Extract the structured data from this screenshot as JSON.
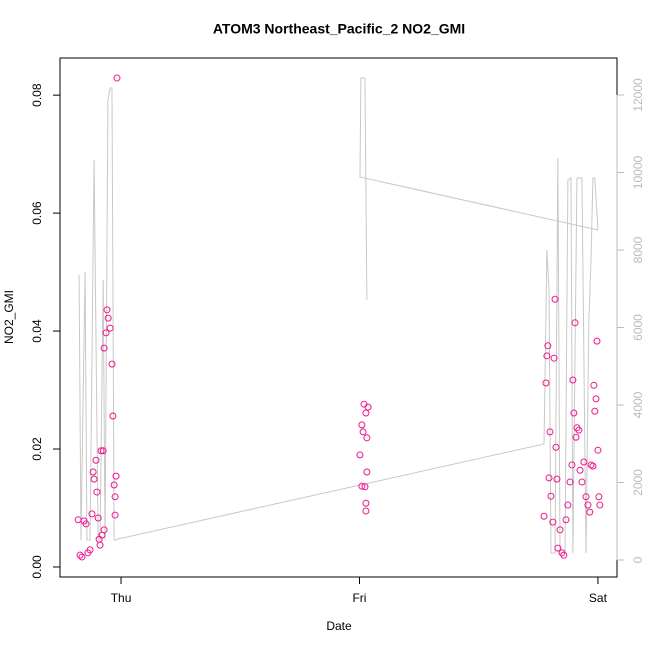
{
  "chart_data": {
    "type": "scatter",
    "title": "ATOM3 Northeast_Pacific_2 NO2_GMI",
    "x_label": "Date",
    "y_label": "NO2_GMI",
    "xlim": [
      -0.256,
      2.08
    ],
    "xticks": [
      {
        "value": 0,
        "label": "Thu"
      },
      {
        "value": 1,
        "label": "Fri"
      },
      {
        "value": 2,
        "label": "Sat"
      }
    ],
    "ylim": [
      -0.0017,
      0.0863
    ],
    "yticks": [
      {
        "value": 0,
        "label": "0.00"
      },
      {
        "value": 0.02,
        "label": "0.02"
      },
      {
        "value": 0.04,
        "label": "0.04"
      },
      {
        "value": 0.06,
        "label": "0.06"
      },
      {
        "value": 0.08,
        "label": "0.08"
      }
    ],
    "y2lim": [
      -439,
      12955
    ],
    "y2ticks": [
      0,
      2000,
      4000,
      6000,
      8000,
      10000,
      12000
    ],
    "series": [
      {
        "type": "scatter",
        "color": "#f0168c",
        "x": [
          -0.18,
          -0.172,
          -0.164,
          -0.155,
          -0.147,
          -0.139,
          -0.13,
          -0.122,
          -0.117,
          -0.113,
          -0.105,
          -0.101,
          -0.096,
          -0.092,
          -0.088,
          -0.084,
          -0.08,
          -0.075,
          -0.071,
          -0.063,
          -0.059,
          -0.054,
          -0.046,
          -0.038,
          -0.034,
          -0.029,
          -0.025,
          -0.021,
          -0.017,
          -0.025,
          -0.071,
          1.002,
          1.01,
          1.015,
          1.019,
          1.023,
          1.027,
          1.031,
          1.031,
          1.027,
          1.027,
          1.036,
          1.01,
          1.774,
          1.782,
          1.786,
          1.79,
          1.795,
          1.799,
          1.803,
          1.811,
          1.816,
          1.82,
          1.824,
          1.828,
          1.832,
          1.841,
          1.849,
          1.857,
          1.866,
          1.874,
          1.883,
          1.891,
          1.895,
          1.899,
          1.904,
          1.908,
          1.912,
          1.92,
          1.925,
          1.933,
          1.941,
          1.95,
          1.958,
          1.966,
          1.971,
          1.979,
          1.983,
          1.987,
          1.992,
          1.996,
          2.0,
          2.004,
          2.008
        ],
        "values": [
          0.008,
          0.002,
          0.0017,
          0.0078,
          0.0073,
          0.0024,
          0.0029,
          0.009,
          0.0161,
          0.0149,
          0.0181,
          0.0127,
          0.0083,
          0.0047,
          0.0037,
          0.0197,
          0.0054,
          0.0197,
          0.0371,
          0.0397,
          0.0436,
          0.0422,
          0.0405,
          0.0344,
          0.0256,
          0.0139,
          0.0119,
          0.0154,
          0.0829,
          0.0088,
          0.0063,
          0.019,
          0.0241,
          0.0229,
          0.0276,
          0.0136,
          0.0261,
          0.0219,
          0.0161,
          0.0108,
          0.0095,
          0.0271,
          0.0137,
          0.0086,
          0.0312,
          0.0358,
          0.0375,
          0.0151,
          0.0229,
          0.012,
          0.0076,
          0.0354,
          0.0454,
          0.0203,
          0.0149,
          0.0032,
          0.0063,
          0.0024,
          0.002,
          0.008,
          0.0105,
          0.0144,
          0.0173,
          0.0317,
          0.0261,
          0.0414,
          0.022,
          0.0236,
          0.0232,
          0.0164,
          0.0144,
          0.0178,
          0.0119,
          0.0105,
          0.0093,
          0.0173,
          0.0171,
          0.0308,
          0.0264,
          0.0285,
          0.0383,
          0.0198,
          0.0119,
          0.0105
        ]
      },
      {
        "type": "line",
        "axis": "y2",
        "color": "#c8c8c8",
        "x": [
          -0.176,
          -0.168,
          -0.151,
          -0.143,
          -0.13,
          -0.113,
          -0.096,
          -0.088,
          -0.075,
          -0.067,
          -0.055,
          -0.046,
          -0.038,
          -0.029,
          -0.017,
          -0.013,
          1.774,
          1.786,
          1.795,
          1.803,
          1.82,
          1.832,
          1.841,
          1.862,
          1.874,
          1.887,
          1.895,
          1.912,
          1.933,
          1.95,
          1.962,
          1.971,
          1.979,
          1.987,
          2.0,
          1.002,
          1.006,
          1.023,
          1.031
        ],
        "values": [
          7355,
          516,
          7432,
          516,
          516,
          10323,
          516,
          516,
          7226,
          516,
          11871,
          12181,
          12181,
          516,
          516,
          542,
          2994,
          8000,
          6968,
          181,
          181,
          10374,
          181,
          181,
          9806,
          9858,
          181,
          9858,
          9858,
          181,
          6194,
          7742,
          9858,
          9858,
          8516,
          9884,
          12439,
          12439,
          6710
        ]
      }
    ]
  }
}
